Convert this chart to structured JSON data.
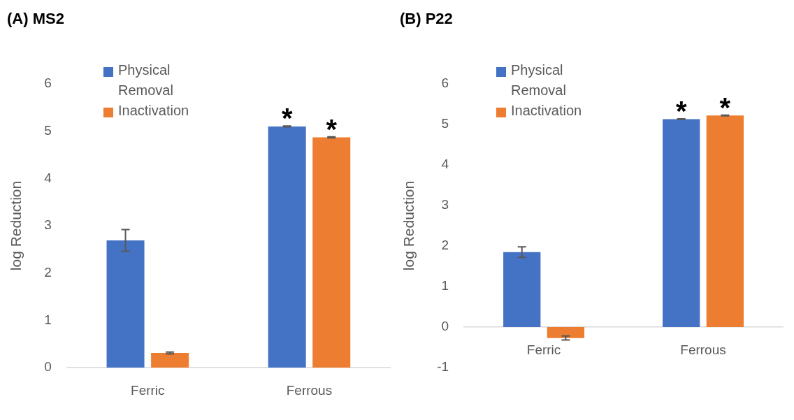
{
  "chart_data": [
    {
      "type": "bar",
      "title": "(A) MS2",
      "ylabel": "log Reduction",
      "categories": [
        "Ferric",
        "Ferrous"
      ],
      "series": [
        {
          "name": "Physical Removal",
          "color": "#4472c4",
          "values": [
            2.69,
            5.1
          ],
          "errors": [
            0.23,
            0.01
          ]
        },
        {
          "name": "Inactivation",
          "color": "#ed7d31",
          "values": [
            0.31,
            4.87
          ],
          "errors": [
            0.02,
            0.01
          ]
        }
      ],
      "ylim": [
        0,
        6
      ],
      "yticks": [
        0,
        1,
        2,
        3,
        4,
        5,
        6
      ],
      "legend": "top left",
      "annotations": [
        {
          "text": "*",
          "x": "Ferrous",
          "y": 5.1
        },
        {
          "text": "*",
          "x": "Ferrous",
          "y": 4.87
        }
      ]
    },
    {
      "type": "bar",
      "title": "(B) P22",
      "ylabel": "log Reduction",
      "categories": [
        "Ferric",
        "Ferrous"
      ],
      "series": [
        {
          "name": "Physical Removal",
          "color": "#4472c4",
          "values": [
            1.85,
            5.13
          ],
          "errors": [
            0.13,
            0.01
          ]
        },
        {
          "name": "Inactivation",
          "color": "#ed7d31",
          "values": [
            -0.27,
            5.22
          ],
          "errors": [
            0.05,
            0.01
          ]
        }
      ],
      "ylim": [
        -1,
        6
      ],
      "yticks": [
        -1,
        0,
        1,
        2,
        3,
        4,
        5,
        6
      ],
      "legend": "top left",
      "annotations": [
        {
          "text": "*",
          "x": "Ferrous",
          "y": 5.13
        },
        {
          "text": "*",
          "x": "Ferrous",
          "y": 5.22
        }
      ]
    }
  ]
}
